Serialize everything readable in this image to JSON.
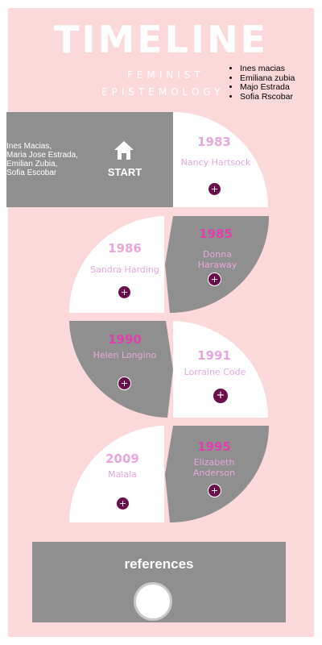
{
  "header": {
    "title": "TIMELINE",
    "subtitle_line1": "FEMINIST",
    "subtitle_line2": "EPISTEMOLOGY",
    "names": [
      "Ines macias",
      "Emiliana zubia",
      "Majo Estrada",
      "Sofia Rscobar"
    ]
  },
  "start": {
    "authors": [
      "Ines Macias,",
      "Maria Jose Estrada,",
      "Emilian Zubia,",
      "Sofia Escobar"
    ],
    "label": "START",
    "icon": "home-icon"
  },
  "timeline": [
    {
      "year": "1983",
      "name": "Nancy Hartsock"
    },
    {
      "year": "1985",
      "name": "Donna Haraway"
    },
    {
      "year": "1986",
      "name": "Sandra Harding"
    },
    {
      "year": "1990",
      "name": "Helen Longino"
    },
    {
      "year": "1991",
      "name": "Lorraine Code"
    },
    {
      "year": "1995",
      "name": "Elizabeth Anderson"
    },
    {
      "year": "2009",
      "name": "Malala"
    }
  ],
  "expand_symbol": "+",
  "references": {
    "label": "references"
  },
  "colors": {
    "background": "#fbd9da",
    "panel_gray": "#8f8f8f",
    "accent_pink": "#e03fae",
    "light_pink": "#e7a7dd",
    "plus_purple": "#6b0f4a"
  }
}
